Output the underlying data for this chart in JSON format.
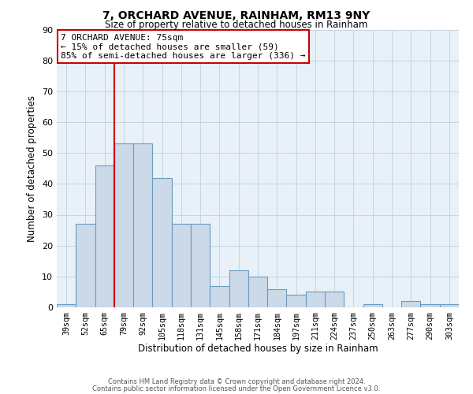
{
  "title": "7, ORCHARD AVENUE, RAINHAM, RM13 9NY",
  "subtitle": "Size of property relative to detached houses in Rainham",
  "xlabel": "Distribution of detached houses by size in Rainham",
  "ylabel": "Number of detached properties",
  "bar_labels": [
    "39sqm",
    "52sqm",
    "65sqm",
    "79sqm",
    "92sqm",
    "105sqm",
    "118sqm",
    "131sqm",
    "145sqm",
    "158sqm",
    "171sqm",
    "184sqm",
    "197sqm",
    "211sqm",
    "224sqm",
    "237sqm",
    "250sqm",
    "263sqm",
    "277sqm",
    "290sqm",
    "303sqm"
  ],
  "bar_values": [
    1,
    27,
    46,
    53,
    53,
    42,
    27,
    27,
    7,
    12,
    10,
    6,
    4,
    5,
    5,
    0,
    1,
    0,
    2,
    1,
    1
  ],
  "bar_color": "#ccd9e8",
  "bar_edge_color": "#6a9bbf",
  "ylim": [
    0,
    90
  ],
  "yticks": [
    0,
    10,
    20,
    30,
    40,
    50,
    60,
    70,
    80,
    90
  ],
  "property_label": "7 ORCHARD AVENUE: 75sqm",
  "annotation_line1": "← 15% of detached houses are smaller (59)",
  "annotation_line2": "85% of semi-detached houses are larger (336) →",
  "vline_color": "#cc0000",
  "box_facecolor": "#ffffff",
  "box_edgecolor": "#cc0000",
  "footer1": "Contains HM Land Registry data © Crown copyright and database right 2024.",
  "footer2": "Contains public sector information licensed under the Open Government Licence v3.0.",
  "bg_color": "#ffffff",
  "axes_facecolor": "#e8f0f8",
  "grid_color": "#c8d4e0"
}
